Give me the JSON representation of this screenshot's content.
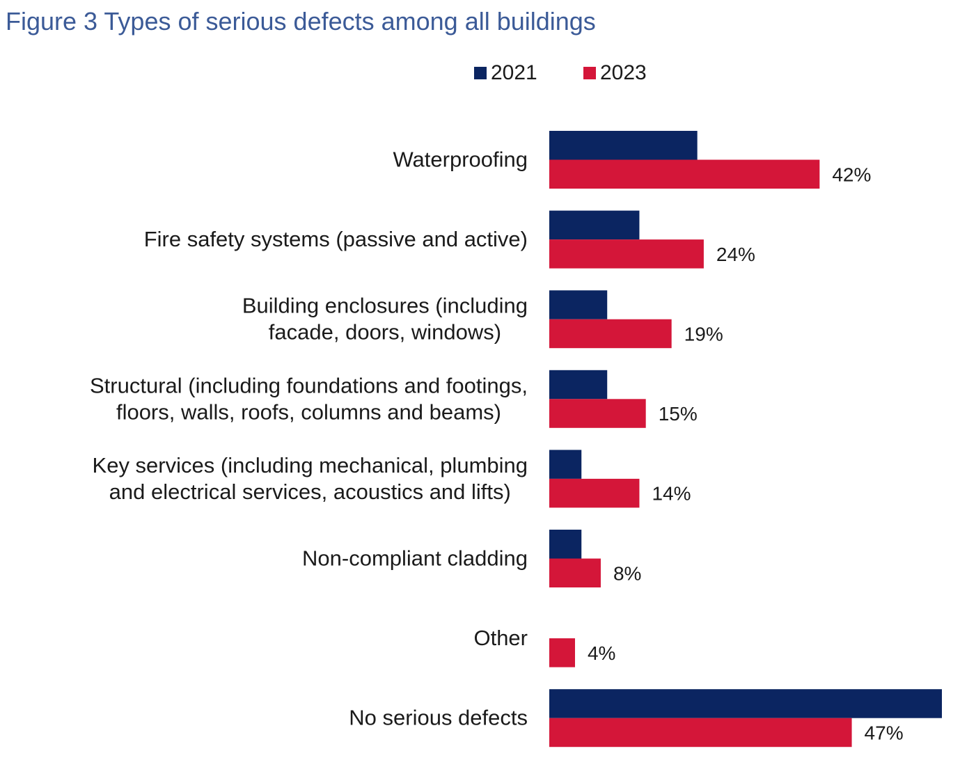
{
  "chart_data": {
    "type": "bar",
    "orientation": "horizontal",
    "title": "Figure 3 Types of serious defects among all buildings",
    "categories": [
      [
        "Waterproofing"
      ],
      [
        "Fire safety systems (passive and active)"
      ],
      [
        "Building enclosures (including",
        "facade, doors, windows)"
      ],
      [
        "Structural (including foundations and footings,",
        "floors, walls, roofs, columns and beams)"
      ],
      [
        "Key services (including mechanical, plumbing",
        "and electrical services, acoustics and lifts)"
      ],
      [
        "Non-compliant cladding"
      ],
      [
        "Other"
      ],
      [
        "No serious defects"
      ]
    ],
    "series": [
      {
        "name": "2021",
        "color": "#0b2561",
        "values": [
          23,
          14,
          9,
          9,
          5,
          5,
          null,
          61
        ]
      },
      {
        "name": "2023",
        "color": "#d41639",
        "values": [
          42,
          24,
          19,
          15,
          14,
          8,
          4,
          47
        ]
      }
    ],
    "data_labels": [
      "42%",
      "24%",
      "19%",
      "15%",
      "14%",
      "8%",
      "4%",
      "47%"
    ],
    "xlim": [
      0,
      61
    ],
    "legend_position": "top",
    "grid": false,
    "xlabel": "",
    "ylabel": ""
  }
}
